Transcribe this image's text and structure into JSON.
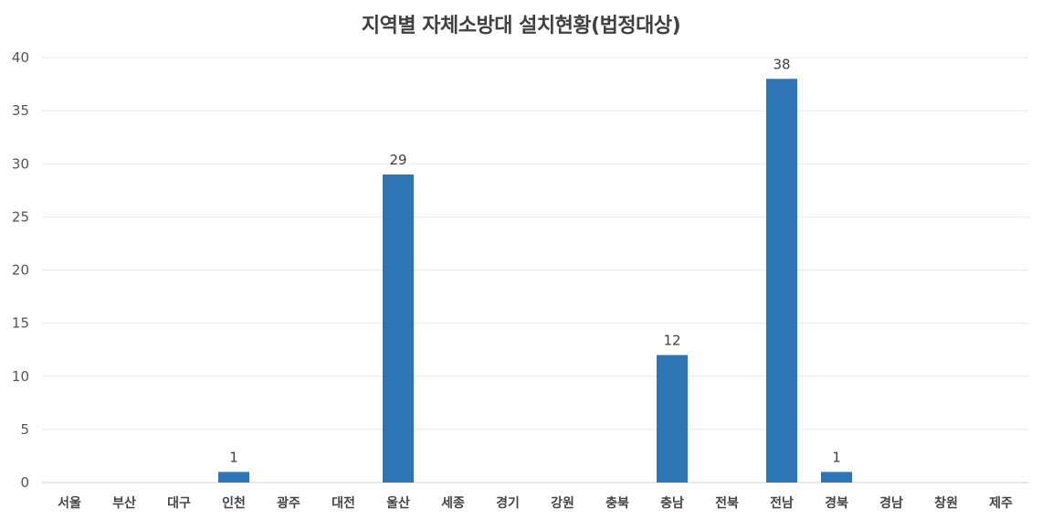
{
  "chart_data": {
    "type": "bar",
    "title": "지역별 자체소방대 설치현황(법정대상)",
    "categories": [
      "서울",
      "부산",
      "대구",
      "인천",
      "광주",
      "대전",
      "울산",
      "세종",
      "경기",
      "강원",
      "충북",
      "충남",
      "전북",
      "전남",
      "경북",
      "경남",
      "창원",
      "제주"
    ],
    "values": [
      0,
      0,
      0,
      1,
      0,
      0,
      29,
      0,
      0,
      0,
      0,
      12,
      0,
      38,
      1,
      0,
      0,
      0
    ],
    "ylim": [
      0,
      40
    ],
    "yticks": [
      0,
      5,
      10,
      15,
      20,
      25,
      30,
      35,
      40
    ],
    "grid": true,
    "legend": "none",
    "bar_color": "#2E75B6",
    "grid_color": "#E8E8E8",
    "axis_color": "#D0D0D0"
  }
}
